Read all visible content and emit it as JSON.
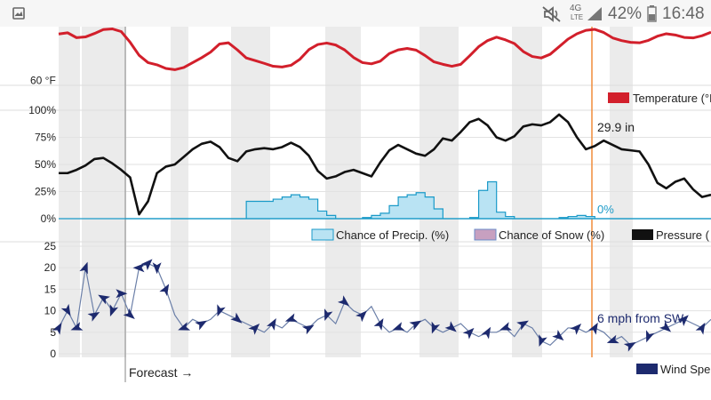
{
  "status_bar": {
    "icons": [
      "gallery-icon",
      "mute-icon",
      "4g-lte-icon",
      "signal-icon",
      "battery-icon"
    ],
    "network": "4G",
    "network_sub": "LTE",
    "battery": "42%",
    "time": "16:48"
  },
  "colors": {
    "temperature": "#d21f2b",
    "pressure": "#111111",
    "precip_fill": "#b9e3f3",
    "precip_line": "#1a9ac8",
    "snow_fill": "#c7a0c0",
    "snow_line": "#6b8cc8",
    "wind": "#1d2a6e",
    "wind_line": "#6b7fa8",
    "current_marker": "#f08c3a",
    "forecast_marker": "#8c8c8c",
    "night_band": "#ebebeb"
  },
  "chart_data": [
    {
      "type": "line",
      "panel": "temperature",
      "yticks": [
        {
          "value": 60,
          "label": "60 °F"
        }
      ],
      "ylim": [
        58,
        82
      ],
      "x": [
        0,
        3,
        6,
        9,
        12,
        15,
        18,
        21,
        24,
        27,
        30,
        33,
        36,
        39,
        42,
        45,
        48,
        51,
        54,
        57,
        60,
        63,
        66,
        69,
        72,
        75,
        78,
        81,
        84,
        87,
        90,
        93,
        96,
        99,
        102,
        105,
        108,
        111,
        114,
        117,
        120,
        123,
        126,
        129,
        132,
        135,
        138,
        141,
        144,
        147,
        150,
        153,
        156,
        159,
        162,
        165,
        168,
        171,
        174,
        177,
        180,
        183,
        186,
        189,
        192,
        195,
        198,
        201,
        204,
        207,
        210,
        213,
        216,
        219
      ],
      "series": [
        {
          "name": "Temperature",
          "values": [
            79,
            79.5,
            77.5,
            77.8,
            79.2,
            80.8,
            81.1,
            80,
            75.6,
            70.3,
            67.3,
            66.4,
            64.9,
            64.4,
            65.3,
            67.3,
            69.3,
            71.6,
            74.9,
            75.4,
            72.5,
            69.2,
            68.1,
            67,
            65.8,
            65.5,
            66.2,
            68.7,
            72.6,
            74.7,
            75.3,
            74.5,
            72.5,
            69.4,
            67.3,
            66.8,
            67.9,
            71,
            72.5,
            73.1,
            72.4,
            70.2,
            67.6,
            66.6,
            65.8,
            66.6,
            70.1,
            73.8,
            76.3,
            77.7,
            76.6,
            75.1,
            71.8,
            69.8,
            69.2,
            70.7,
            73.8,
            76.9,
            79.1,
            80.5,
            80.9,
            79.6,
            77.4,
            76.3,
            75.6,
            75.4,
            76.4,
            78.1,
            79.1,
            78.6,
            77.6,
            77.4,
            78.3,
            79.7
          ]
        }
      ],
      "legend": [
        "Temperature (°F)"
      ]
    },
    {
      "type": "line",
      "panel": "precipitation_pressure",
      "yticks": [
        "100%",
        "75%",
        "50%",
        "25%",
        "0%"
      ],
      "ylim": [
        0,
        100
      ],
      "x": [
        0,
        3,
        6,
        9,
        12,
        15,
        18,
        21,
        24,
        27,
        30,
        33,
        36,
        39,
        42,
        45,
        48,
        51,
        54,
        57,
        60,
        63,
        66,
        69,
        72,
        75,
        78,
        81,
        84,
        87,
        90,
        93,
        96,
        99,
        102,
        105,
        108,
        111,
        114,
        117,
        120,
        123,
        126,
        129,
        132,
        135,
        138,
        141,
        144,
        147,
        150,
        153,
        156,
        159,
        162,
        165,
        168,
        171,
        174,
        177,
        180,
        183,
        186,
        189,
        192,
        195,
        198,
        201,
        204,
        207,
        210,
        213,
        216,
        219
      ],
      "series": [
        {
          "name": "Pressure",
          "values": [
            42,
            42,
            45,
            49,
            55,
            56,
            51,
            45,
            38,
            4,
            16,
            42,
            48,
            50,
            57,
            64,
            69,
            71,
            66,
            56,
            53,
            62,
            64,
            65,
            64,
            66,
            70,
            66,
            58,
            44,
            37,
            39,
            43,
            45,
            42,
            39,
            52,
            63,
            68,
            64,
            60,
            58,
            64,
            74,
            72,
            80,
            89,
            92,
            86,
            75,
            72,
            76,
            85,
            87,
            86,
            89,
            96,
            89,
            75,
            64,
            67,
            72,
            68,
            64,
            63,
            62,
            50,
            33,
            28,
            34,
            37,
            27,
            20,
            22
          ]
        },
        {
          "name": "Chance of Precip.",
          "values": [
            0,
            0,
            0,
            0,
            0,
            0,
            0,
            0,
            0,
            0,
            0,
            0,
            0,
            0,
            0,
            0,
            0,
            0,
            0,
            0,
            0,
            16,
            16,
            16,
            18,
            20,
            22,
            20,
            18,
            7,
            3,
            0,
            0,
            0,
            1,
            3,
            5,
            12,
            20,
            22,
            24,
            20,
            9,
            0,
            0,
            0,
            1,
            26,
            34,
            6,
            2,
            0,
            0,
            0,
            0,
            0,
            1,
            2,
            3,
            2,
            0,
            0,
            0,
            0,
            0,
            0,
            0,
            0,
            0,
            0,
            0,
            0,
            0,
            0
          ]
        },
        {
          "name": "Chance of Snow",
          "values": [
            0,
            0,
            0,
            0,
            0,
            0,
            0,
            0,
            0,
            0,
            0,
            0,
            0,
            0,
            0,
            0,
            0,
            0,
            0,
            0,
            0,
            0,
            0,
            0,
            0,
            0,
            0,
            0,
            0,
            0,
            0,
            0,
            0,
            0,
            0,
            0,
            0,
            0,
            0,
            0,
            0,
            0,
            0,
            0,
            0,
            0,
            0,
            0,
            0,
            0,
            0,
            0,
            0,
            0,
            0,
            0,
            0,
            0,
            0,
            0,
            0,
            0,
            0,
            0,
            0,
            0,
            0,
            0,
            0,
            0,
            0,
            0,
            0,
            0
          ]
        }
      ],
      "annotations": {
        "pressure_now": "29.9 in",
        "precip_now": "0%"
      },
      "legend": [
        "Chance of Precip. (%)",
        "Chance of Snow (%)",
        "Pressure ("
      ]
    },
    {
      "type": "line",
      "panel": "wind",
      "yticks": [
        "25",
        "20",
        "15",
        "10",
        "5",
        "0"
      ],
      "ylim": [
        0,
        25
      ],
      "x": [
        0,
        3,
        6,
        9,
        12,
        15,
        18,
        21,
        24,
        27,
        30,
        33,
        36,
        39,
        42,
        45,
        48,
        51,
        54,
        57,
        60,
        63,
        66,
        69,
        72,
        75,
        78,
        81,
        84,
        87,
        90,
        93,
        96,
        99,
        102,
        105,
        108,
        111,
        114,
        117,
        120,
        123,
        126,
        129,
        132,
        135,
        138,
        141,
        144,
        147,
        150,
        153,
        156,
        159,
        162,
        165,
        168,
        171,
        174,
        177,
        180,
        183,
        186,
        189,
        192,
        195,
        198,
        201,
        204,
        207,
        210,
        213,
        216,
        219
      ],
      "series": [
        {
          "name": "Wind Speed",
          "values": [
            6,
            10,
            6,
            20,
            9,
            13,
            10,
            14,
            9,
            20,
            21,
            20,
            15,
            9,
            6,
            8,
            7,
            8,
            10,
            9,
            8,
            7,
            6,
            5,
            7,
            6,
            8,
            7,
            6,
            8,
            9,
            7,
            12,
            10,
            9,
            11,
            7,
            5,
            6,
            5,
            7,
            8,
            6,
            5,
            6,
            7,
            5,
            4,
            5,
            5,
            6,
            4,
            7,
            6,
            3,
            2,
            4,
            6,
            6,
            5,
            6,
            5,
            3,
            4,
            2,
            3,
            4,
            5,
            6,
            7,
            8,
            7,
            6,
            8
          ]
        }
      ],
      "annotations": {
        "wind_now": "6 mph from SW"
      },
      "legend": [
        "Wind Spe"
      ]
    }
  ],
  "forecast_label": "Forecast →"
}
